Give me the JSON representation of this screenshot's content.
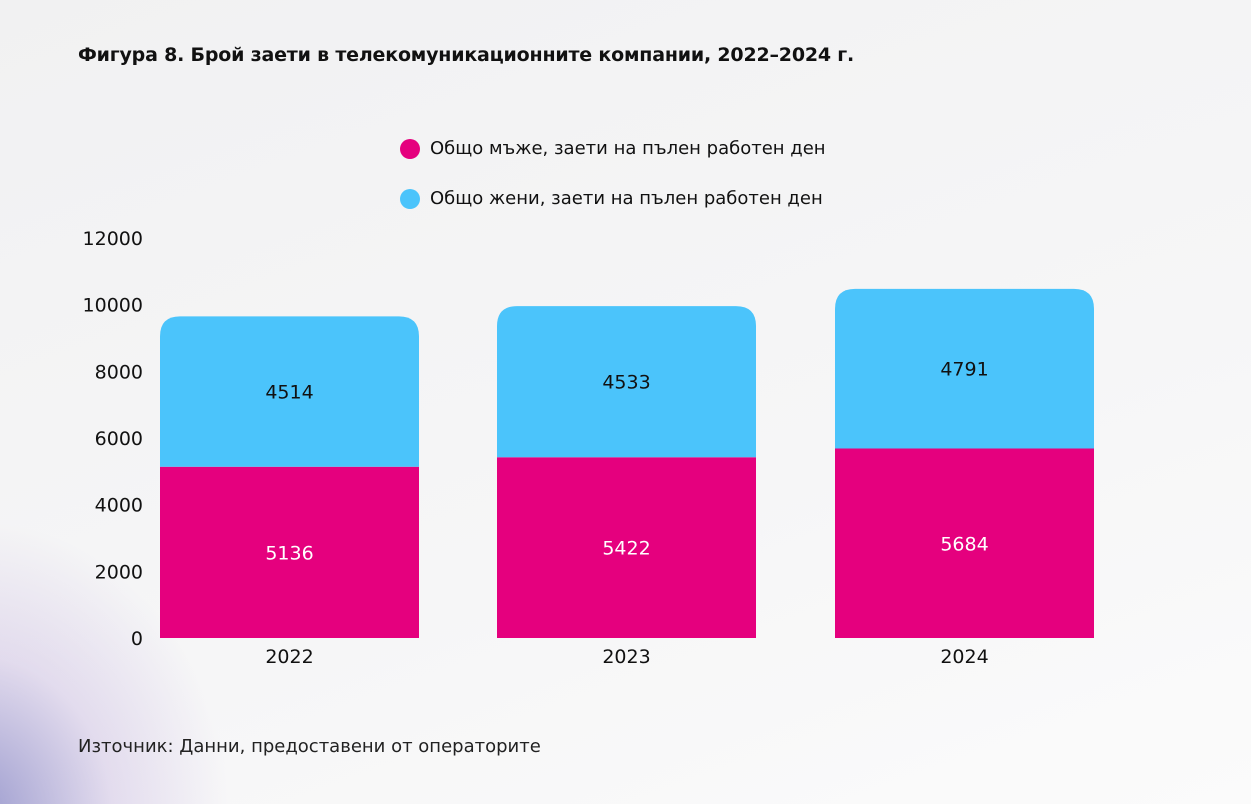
{
  "title": "Фигура 8. Брой заети в телекомуникационните компании, 2022–2024 г.",
  "source": "Източник: Данни, предоставени от операторите",
  "chart_data": {
    "type": "bar",
    "stacked": true,
    "title": "Фигура 8. Брой заети в телекомуникационните компании, 2022–2024 г.",
    "categories": [
      "2022",
      "2023",
      "2024"
    ],
    "series": [
      {
        "name": "Общо мъже, заети на пълен работен ден",
        "values": [
          5136,
          5422,
          5684
        ],
        "color": "#e5007e",
        "label_color": "#ffffff"
      },
      {
        "name": "Общо жени, заети на пълен работен ден",
        "values": [
          4514,
          4533,
          4791
        ],
        "color": "#4bc4fb",
        "label_color": "#111111"
      }
    ],
    "ylim": [
      0,
      12000
    ],
    "yticks": [
      "0",
      "2000",
      "4000",
      "6000",
      "8000",
      "10000",
      "12000"
    ],
    "grid": false,
    "legend_position": "top",
    "data_labels": true
  }
}
